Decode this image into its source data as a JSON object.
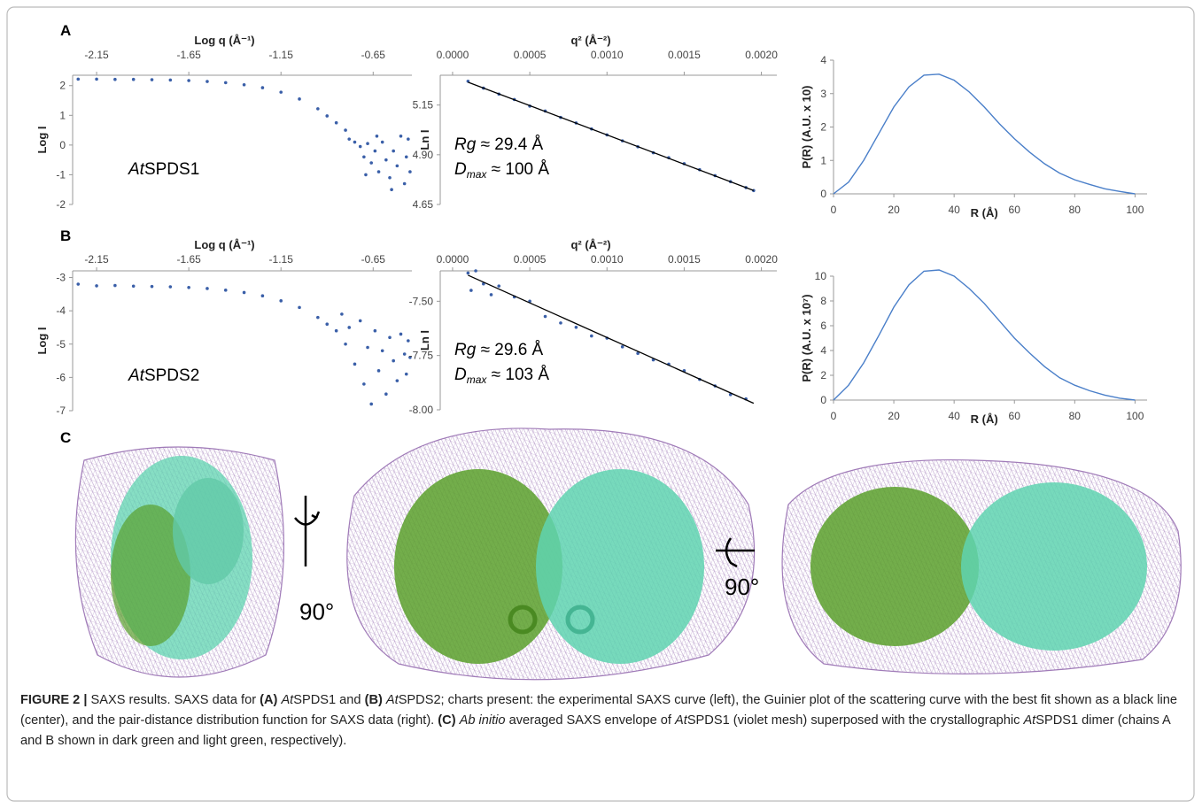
{
  "panel_labels": [
    "A",
    "B",
    "C"
  ],
  "chart_data": [
    {
      "type": "scatter",
      "x_label": "Log q (Å⁻¹)",
      "y_label": "Log I",
      "color": "#3a5fa8",
      "protein_label": {
        "italic": "At",
        "text": "SPDS1"
      },
      "xlim": [
        -2.28,
        -0.44
      ],
      "xticks": [
        -2.15,
        -1.65,
        -1.15,
        -0.65
      ],
      "ylim": [
        -2,
        2.35
      ],
      "yticks": [
        2,
        1,
        0,
        -1,
        -2
      ],
      "x": [
        -2.25,
        -2.15,
        -2.05,
        -1.95,
        -1.85,
        -1.75,
        -1.65,
        -1.55,
        -1.45,
        -1.35,
        -1.25,
        -1.15,
        -1.05,
        -0.95,
        -0.9,
        -0.85,
        -0.8,
        -0.78,
        -0.75,
        -0.72,
        -0.7,
        -0.68,
        -0.66,
        -0.64,
        -0.62,
        -0.6,
        -0.58,
        -0.56,
        -0.54,
        -0.52,
        -0.5,
        -0.48,
        -0.47,
        -0.46,
        -0.45,
        -0.55,
        -0.63,
        -0.69
      ],
      "values": [
        2.22,
        2.22,
        2.21,
        2.21,
        2.2,
        2.19,
        2.17,
        2.14,
        2.1,
        2.03,
        1.93,
        1.78,
        1.55,
        1.22,
        0.98,
        0.75,
        0.5,
        0.2,
        0.1,
        -0.05,
        -0.4,
        0.05,
        -0.6,
        -0.2,
        -0.9,
        0.1,
        -0.5,
        -1.1,
        -0.2,
        -0.7,
        0.3,
        -1.3,
        -0.4,
        0.2,
        -0.9,
        -1.5,
        0.3,
        -1.0
      ]
    },
    {
      "type": "scatter",
      "x_label": "q² (Å⁻²)",
      "y_label": "Ln I",
      "color": "#3a5fa8",
      "rg": {
        "symbol": "Rg",
        "text": " ≈ 29.4 Å"
      },
      "dmax": {
        "symbol": "D",
        "subscript": "max",
        "text": " ≈ 100 Å"
      },
      "xlim": [
        -8e-05,
        0.0021
      ],
      "xticks": [
        {
          "value": 0,
          "label": "0.0000"
        },
        0.0005,
        {
          "value": 0.001,
          "label": "0.0010"
        },
        0.0015,
        {
          "value": 0.002,
          "label": "0.0020"
        }
      ],
      "ylim": [
        4.65,
        5.3
      ],
      "yticks": [
        5.15,
        {
          "value": 4.9,
          "label": "4.90"
        },
        4.65
      ],
      "x": [
        0.0001,
        0.0002,
        0.0003,
        0.0004,
        0.0005,
        0.0006,
        0.0007,
        0.0008,
        0.0009,
        0.001,
        0.0011,
        0.0012,
        0.0013,
        0.0014,
        0.0015,
        0.0016,
        0.0017,
        0.0018,
        0.0019,
        0.00195
      ],
      "values": [
        5.27,
        5.235,
        5.205,
        5.178,
        5.145,
        5.12,
        5.088,
        5.06,
        5.03,
        5.0,
        4.97,
        4.94,
        4.91,
        4.885,
        4.855,
        4.825,
        4.795,
        4.765,
        4.735,
        4.72
      ],
      "fit": {
        "x": [
          0.0001,
          0.00195
        ],
        "values": [
          5.265,
          4.72
        ],
        "color": "#000000"
      }
    },
    {
      "type": "line",
      "x_label": "R (Å)",
      "y_label": "P(R) (A.U. x 10)",
      "color": "#4a7fc9",
      "xlim": [
        0,
        104
      ],
      "xticks": [
        0,
        20,
        40,
        60,
        80,
        100
      ],
      "ylim": [
        0,
        4
      ],
      "yticks": [
        0,
        1,
        2,
        3,
        4
      ],
      "x": [
        0,
        5,
        10,
        15,
        20,
        25,
        30,
        35,
        40,
        45,
        50,
        55,
        60,
        65,
        70,
        75,
        80,
        85,
        90,
        95,
        100
      ],
      "values": [
        0,
        0.35,
        1.0,
        1.8,
        2.6,
        3.2,
        3.55,
        3.58,
        3.4,
        3.05,
        2.6,
        2.1,
        1.65,
        1.25,
        0.9,
        0.62,
        0.42,
        0.28,
        0.15,
        0.07,
        0
      ]
    },
    {
      "type": "scatter",
      "x_label": "Log q (Å⁻¹)",
      "y_label": "Log I",
      "color": "#3a5fa8",
      "protein_label": {
        "italic": "At",
        "text": "SPDS2"
      },
      "xlim": [
        -2.28,
        -0.44
      ],
      "xticks": [
        -2.15,
        -1.65,
        -1.15,
        -0.65
      ],
      "ylim": [
        -7,
        -2.8
      ],
      "yticks": [
        -3,
        -4,
        -5,
        -6,
        -7
      ],
      "x": [
        -2.25,
        -2.15,
        -2.05,
        -1.95,
        -1.85,
        -1.75,
        -1.65,
        -1.55,
        -1.45,
        -1.35,
        -1.25,
        -1.15,
        -1.05,
        -0.95,
        -0.9,
        -0.85,
        -0.82,
        -0.8,
        -0.78,
        -0.75,
        -0.72,
        -0.7,
        -0.68,
        -0.66,
        -0.64,
        -0.62,
        -0.6,
        -0.58,
        -0.56,
        -0.54,
        -0.52,
        -0.5,
        -0.48,
        -0.47,
        -0.46,
        -0.45
      ],
      "values": [
        -3.2,
        -3.25,
        -3.24,
        -3.26,
        -3.27,
        -3.28,
        -3.3,
        -3.33,
        -3.38,
        -3.45,
        -3.55,
        -3.7,
        -3.9,
        -4.2,
        -4.4,
        -4.6,
        -4.1,
        -5.0,
        -4.5,
        -5.6,
        -4.3,
        -6.2,
        -5.1,
        -6.8,
        -4.6,
        -5.8,
        -5.2,
        -6.5,
        -4.8,
        -5.5,
        -6.1,
        -4.7,
        -5.3,
        -5.9,
        -4.9,
        -5.4
      ]
    },
    {
      "type": "scatter",
      "x_label": "q² (Å⁻²)",
      "y_label": "Ln I",
      "color": "#3a5fa8",
      "rg": {
        "symbol": "Rg",
        "text": " ≈ 29.6 Å"
      },
      "dmax": {
        "symbol": "D",
        "subscript": "max",
        "text": " ≈ 103 Å"
      },
      "xlim": [
        -8e-05,
        0.0021
      ],
      "xticks": [
        {
          "value": 0,
          "label": "0.0000"
        },
        0.0005,
        {
          "value": 0.001,
          "label": "0.0010"
        },
        0.0015,
        {
          "value": 0.002,
          "label": "0.0020"
        }
      ],
      "ylim": [
        -8,
        -7.36
      ],
      "yticks": [
        {
          "value": -7.5,
          "label": "-7.50"
        },
        -7.75,
        {
          "value": -8,
          "label": "-8.00"
        }
      ],
      "x": [
        0.0001,
        0.00012,
        0.00015,
        0.0002,
        0.00025,
        0.0003,
        0.0004,
        0.0005,
        0.0006,
        0.0007,
        0.0008,
        0.0009,
        0.001,
        0.0011,
        0.0012,
        0.0013,
        0.0014,
        0.0015,
        0.0016,
        0.0017,
        0.0018,
        0.0019
      ],
      "values": [
        -7.37,
        -7.45,
        -7.36,
        -7.42,
        -7.47,
        -7.43,
        -7.48,
        -7.5,
        -7.57,
        -7.6,
        -7.62,
        -7.66,
        -7.67,
        -7.71,
        -7.74,
        -7.77,
        -7.79,
        -7.82,
        -7.86,
        -7.89,
        -7.93,
        -7.95
      ],
      "fit": {
        "x": [
          0.0001,
          0.00195
        ],
        "values": [
          -7.38,
          -7.97
        ],
        "color": "#000000"
      }
    },
    {
      "type": "line",
      "x_label": "R (Å)",
      "y_label": "P(R) (A.U. x 10⁷)",
      "color": "#4a7fc9",
      "xlim": [
        0,
        104
      ],
      "xticks": [
        0,
        20,
        40,
        60,
        80,
        100
      ],
      "ylim": [
        0,
        10
      ],
      "yticks": [
        0,
        2,
        4,
        6,
        8,
        10
      ],
      "x": [
        0,
        5,
        10,
        15,
        20,
        25,
        30,
        35,
        40,
        45,
        50,
        55,
        60,
        65,
        70,
        75,
        80,
        85,
        90,
        95,
        100
      ],
      "values": [
        0,
        1.2,
        3.0,
        5.2,
        7.5,
        9.3,
        10.4,
        10.5,
        10.0,
        9.0,
        7.8,
        6.4,
        5.0,
        3.8,
        2.7,
        1.8,
        1.2,
        0.75,
        0.4,
        0.15,
        0
      ]
    }
  ],
  "rotation_labels": [
    "90°",
    "90°"
  ],
  "caption": [
    {
      "text": "FIGURE 2 | ",
      "bold": true
    },
    {
      "text": "SAXS results. SAXS data for "
    },
    {
      "text": "(A) ",
      "bold": true
    },
    {
      "text": "At",
      "italic": true
    },
    {
      "text": "SPDS1 and "
    },
    {
      "text": "(B) ",
      "bold": true
    },
    {
      "text": "At",
      "italic": true
    },
    {
      "text": "SPDS2; charts present: the experimental SAXS curve (left), the Guinier plot of the scattering curve with the best fit shown as a black line (center), and the pair-distance distribution function for SAXS data (right). "
    },
    {
      "text": "(C) ",
      "bold": true
    },
    {
      "text": "Ab initio",
      "italic": true
    },
    {
      "text": " averaged SAXS envelope of "
    },
    {
      "text": "At",
      "italic": true
    },
    {
      "text": "SPDS1 (violet mesh) superposed with the crystallographic "
    },
    {
      "text": "At",
      "italic": true
    },
    {
      "text": "SPDS1 dimer (chains A and B shown in dark green and light green, respectively)."
    }
  ]
}
